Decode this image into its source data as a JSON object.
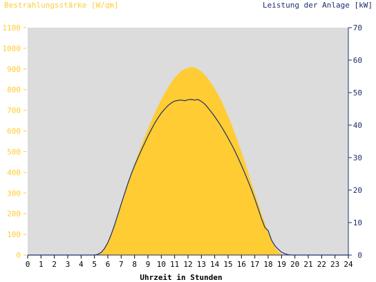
{
  "chart_data": {
    "type": "area",
    "left_axis_label": "Bestrahlungsstärke [W/qm]",
    "right_axis_label": "Leistung der Anlage [kW]",
    "xlabel": "Uhrzeit in Stunden",
    "xlim": [
      0,
      24
    ],
    "x_ticks": [
      "0",
      "1",
      "2",
      "3",
      "4",
      "5",
      "6",
      "7",
      "8",
      "9",
      "10",
      "11",
      "12",
      "13",
      "14",
      "15",
      "16",
      "17",
      "18",
      "19",
      "20",
      "21",
      "22",
      "23",
      "24"
    ],
    "ylim_left": [
      0,
      1100
    ],
    "y_ticks_left": [
      "0",
      "100",
      "200",
      "300",
      "400",
      "500",
      "600",
      "700",
      "800",
      "900",
      "1000",
      "1100"
    ],
    "ylim_right": [
      0,
      70
    ],
    "y_ticks_right": [
      "0",
      "10",
      "20",
      "30",
      "40",
      "50",
      "60",
      "70"
    ],
    "grid": false,
    "colors": {
      "irradiance": "#FFCC33",
      "power": "#1C2E6B",
      "plot_background": "#DCDCDC",
      "axis": "#1C2E6B"
    },
    "series": [
      {
        "axis": "left",
        "style": "area",
        "x": [
          0,
          5.0,
          5.25,
          5.5,
          5.75,
          6.0,
          6.25,
          6.5,
          6.75,
          7.0,
          7.25,
          7.5,
          7.75,
          8.0,
          8.25,
          8.5,
          8.75,
          9.0,
          9.25,
          9.5,
          9.75,
          10.0,
          10.25,
          10.5,
          10.75,
          11.0,
          11.25,
          11.5,
          11.75,
          12.0,
          12.25,
          12.5,
          12.75,
          13.0,
          13.25,
          13.5,
          13.75,
          14.0,
          14.25,
          14.5,
          14.75,
          15.0,
          15.25,
          15.5,
          15.75,
          16.0,
          16.25,
          16.5,
          16.75,
          17.0,
          17.25,
          17.5,
          17.75,
          18.0,
          18.25,
          18.5,
          18.75,
          19.0,
          19.25,
          19.5,
          19.75,
          20.0,
          20.25,
          24
        ],
        "values": [
          0,
          0,
          3,
          12,
          30,
          58,
          95,
          140,
          188,
          240,
          292,
          343,
          393,
          440,
          485,
          528,
          570,
          610,
          648,
          685,
          720,
          752,
          782,
          810,
          835,
          857,
          875,
          890,
          900,
          906,
          910,
          907,
          900,
          888,
          872,
          853,
          830,
          805,
          776,
          745,
          710,
          672,
          632,
          590,
          545,
          498,
          450,
          400,
          350,
          300,
          250,
          200,
          155,
          110,
          70,
          38,
          16,
          5,
          1,
          0,
          0,
          0,
          0,
          0
        ]
      },
      {
        "axis": "right",
        "style": "line",
        "x": [
          0,
          5.0,
          5.25,
          5.5,
          5.75,
          6.0,
          6.25,
          6.5,
          6.75,
          7.0,
          7.25,
          7.5,
          7.75,
          8.0,
          8.25,
          8.5,
          8.75,
          9.0,
          9.25,
          9.5,
          9.75,
          10.0,
          10.25,
          10.5,
          10.75,
          11.0,
          11.25,
          11.5,
          11.75,
          12.0,
          12.25,
          12.5,
          12.75,
          13.0,
          13.25,
          13.5,
          13.75,
          14.0,
          14.25,
          14.5,
          14.75,
          15.0,
          15.25,
          15.5,
          15.75,
          16.0,
          16.25,
          16.5,
          16.75,
          17.0,
          17.25,
          17.5,
          17.75,
          18.0,
          18.25,
          18.5,
          18.75,
          19.0,
          19.25,
          19.5,
          19.75,
          20.0,
          20.25,
          24
        ],
        "values": [
          0,
          0,
          0.2,
          0.8,
          2.0,
          3.8,
          6.3,
          9.2,
          12.4,
          15.7,
          18.9,
          22.0,
          24.9,
          27.5,
          29.9,
          32.2,
          34.4,
          36.6,
          38.6,
          40.5,
          42.2,
          43.7,
          44.9,
          46.0,
          46.8,
          47.4,
          47.6,
          47.7,
          47.5,
          47.8,
          47.9,
          47.7,
          47.9,
          47.3,
          46.5,
          45.3,
          44.0,
          42.6,
          41.1,
          39.5,
          37.8,
          36.0,
          34.1,
          32.1,
          29.9,
          27.6,
          25.2,
          22.7,
          20.1,
          17.3,
          14.3,
          11.2,
          8.5,
          7.5,
          4.6,
          2.9,
          1.8,
          0.9,
          0.4,
          0.1,
          0,
          0,
          0,
          0
        ]
      }
    ]
  }
}
